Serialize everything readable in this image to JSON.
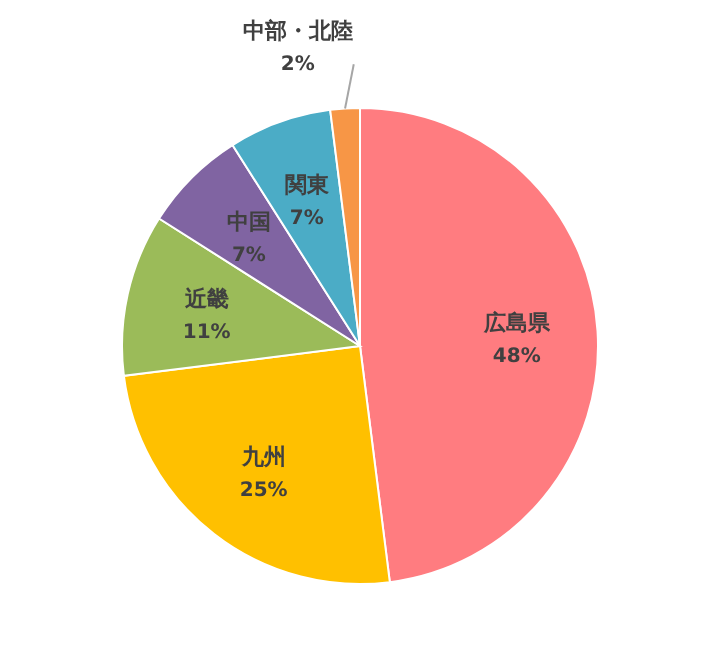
{
  "chart_data": {
    "type": "pie",
    "categories": [
      "広島県",
      "九州",
      "近畿",
      "中国",
      "関東",
      "中部・北陸"
    ],
    "values": [
      48,
      25,
      11,
      7,
      7,
      2
    ],
    "colors": [
      "#ff7c80",
      "#ffc000",
      "#9bbb59",
      "#8064a2",
      "#4bacc6",
      "#f79646"
    ],
    "value_labels": [
      "48%",
      "25%",
      "11%",
      "7%",
      "7%",
      "2%"
    ]
  }
}
